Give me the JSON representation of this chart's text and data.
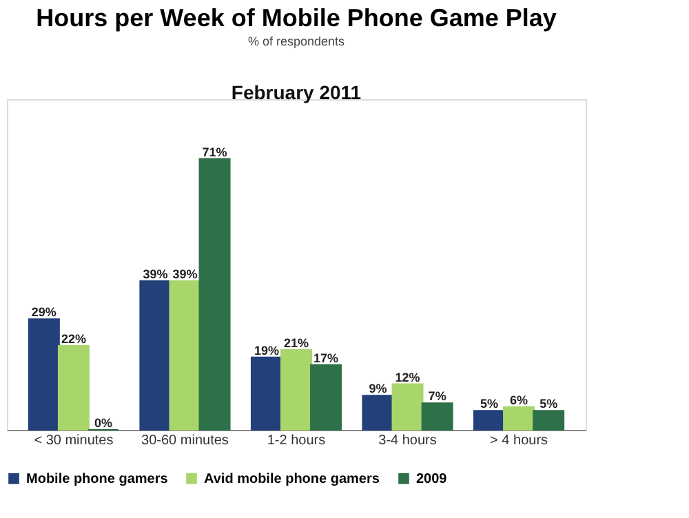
{
  "chart_data": {
    "type": "bar",
    "title": "Hours per Week of Mobile Phone Game Play",
    "subtitle": "% of respondents",
    "annotations": [
      "February 2011"
    ],
    "categories": [
      "< 30 minutes",
      "30-60 minutes",
      "1-2 hours",
      "3-4 hours",
      "> 4 hours"
    ],
    "series": [
      {
        "name": "Mobile phone gamers",
        "color": "#23407a",
        "values": [
          29,
          39,
          19,
          9,
          5
        ],
        "value_labels": [
          "29%",
          "39%",
          "19%",
          "9%",
          "5%"
        ]
      },
      {
        "name": "Avid mobile phone gamers",
        "color": "#a9d66b",
        "values": [
          22,
          39,
          21,
          12,
          6
        ],
        "value_labels": [
          "22%",
          "39%",
          "21%",
          "12%",
          "6%"
        ]
      },
      {
        "name": "2009",
        "color": "#2e7148",
        "values": [
          0,
          71,
          17,
          7,
          5
        ],
        "value_labels": [
          "0%",
          "71%",
          "17%",
          "7%",
          "5%"
        ]
      }
    ],
    "legend": "bottom",
    "grid": false,
    "tick_labels": "x"
  }
}
